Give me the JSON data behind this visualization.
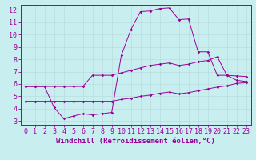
{
  "xlabel": "Windchill (Refroidissement éolien,°C)",
  "bg_color": "#c8eef0",
  "line_color": "#990099",
  "grid_color": "#b8dde0",
  "xlim": [
    -0.5,
    23.5
  ],
  "ylim": [
    2.7,
    12.4
  ],
  "xticks": [
    0,
    1,
    2,
    3,
    4,
    5,
    6,
    7,
    8,
    9,
    10,
    11,
    12,
    13,
    14,
    15,
    16,
    17,
    18,
    19,
    20,
    21,
    22,
    23
  ],
  "yticks": [
    3,
    4,
    5,
    6,
    7,
    8,
    9,
    10,
    11,
    12
  ],
  "line1_y": [
    5.8,
    5.8,
    5.8,
    4.1,
    3.2,
    3.4,
    3.6,
    3.5,
    3.6,
    3.7,
    8.3,
    10.4,
    11.85,
    11.9,
    12.1,
    12.15,
    11.2,
    11.25,
    8.6,
    8.6,
    6.7,
    6.7,
    6.3,
    6.2
  ],
  "line2_y": [
    5.8,
    5.8,
    5.8,
    5.8,
    5.8,
    5.8,
    5.8,
    6.7,
    6.7,
    6.7,
    6.9,
    7.1,
    7.3,
    7.5,
    7.6,
    7.7,
    7.5,
    7.6,
    7.8,
    7.9,
    8.2,
    6.7,
    6.65,
    6.6
  ],
  "line3_y": [
    4.6,
    4.6,
    4.6,
    4.6,
    4.6,
    4.6,
    4.6,
    4.6,
    4.6,
    4.6,
    4.75,
    4.85,
    5.0,
    5.1,
    5.25,
    5.35,
    5.2,
    5.3,
    5.45,
    5.6,
    5.75,
    5.85,
    6.05,
    6.1
  ],
  "xlabel_fontsize": 6.5,
  "tick_fontsize": 6
}
